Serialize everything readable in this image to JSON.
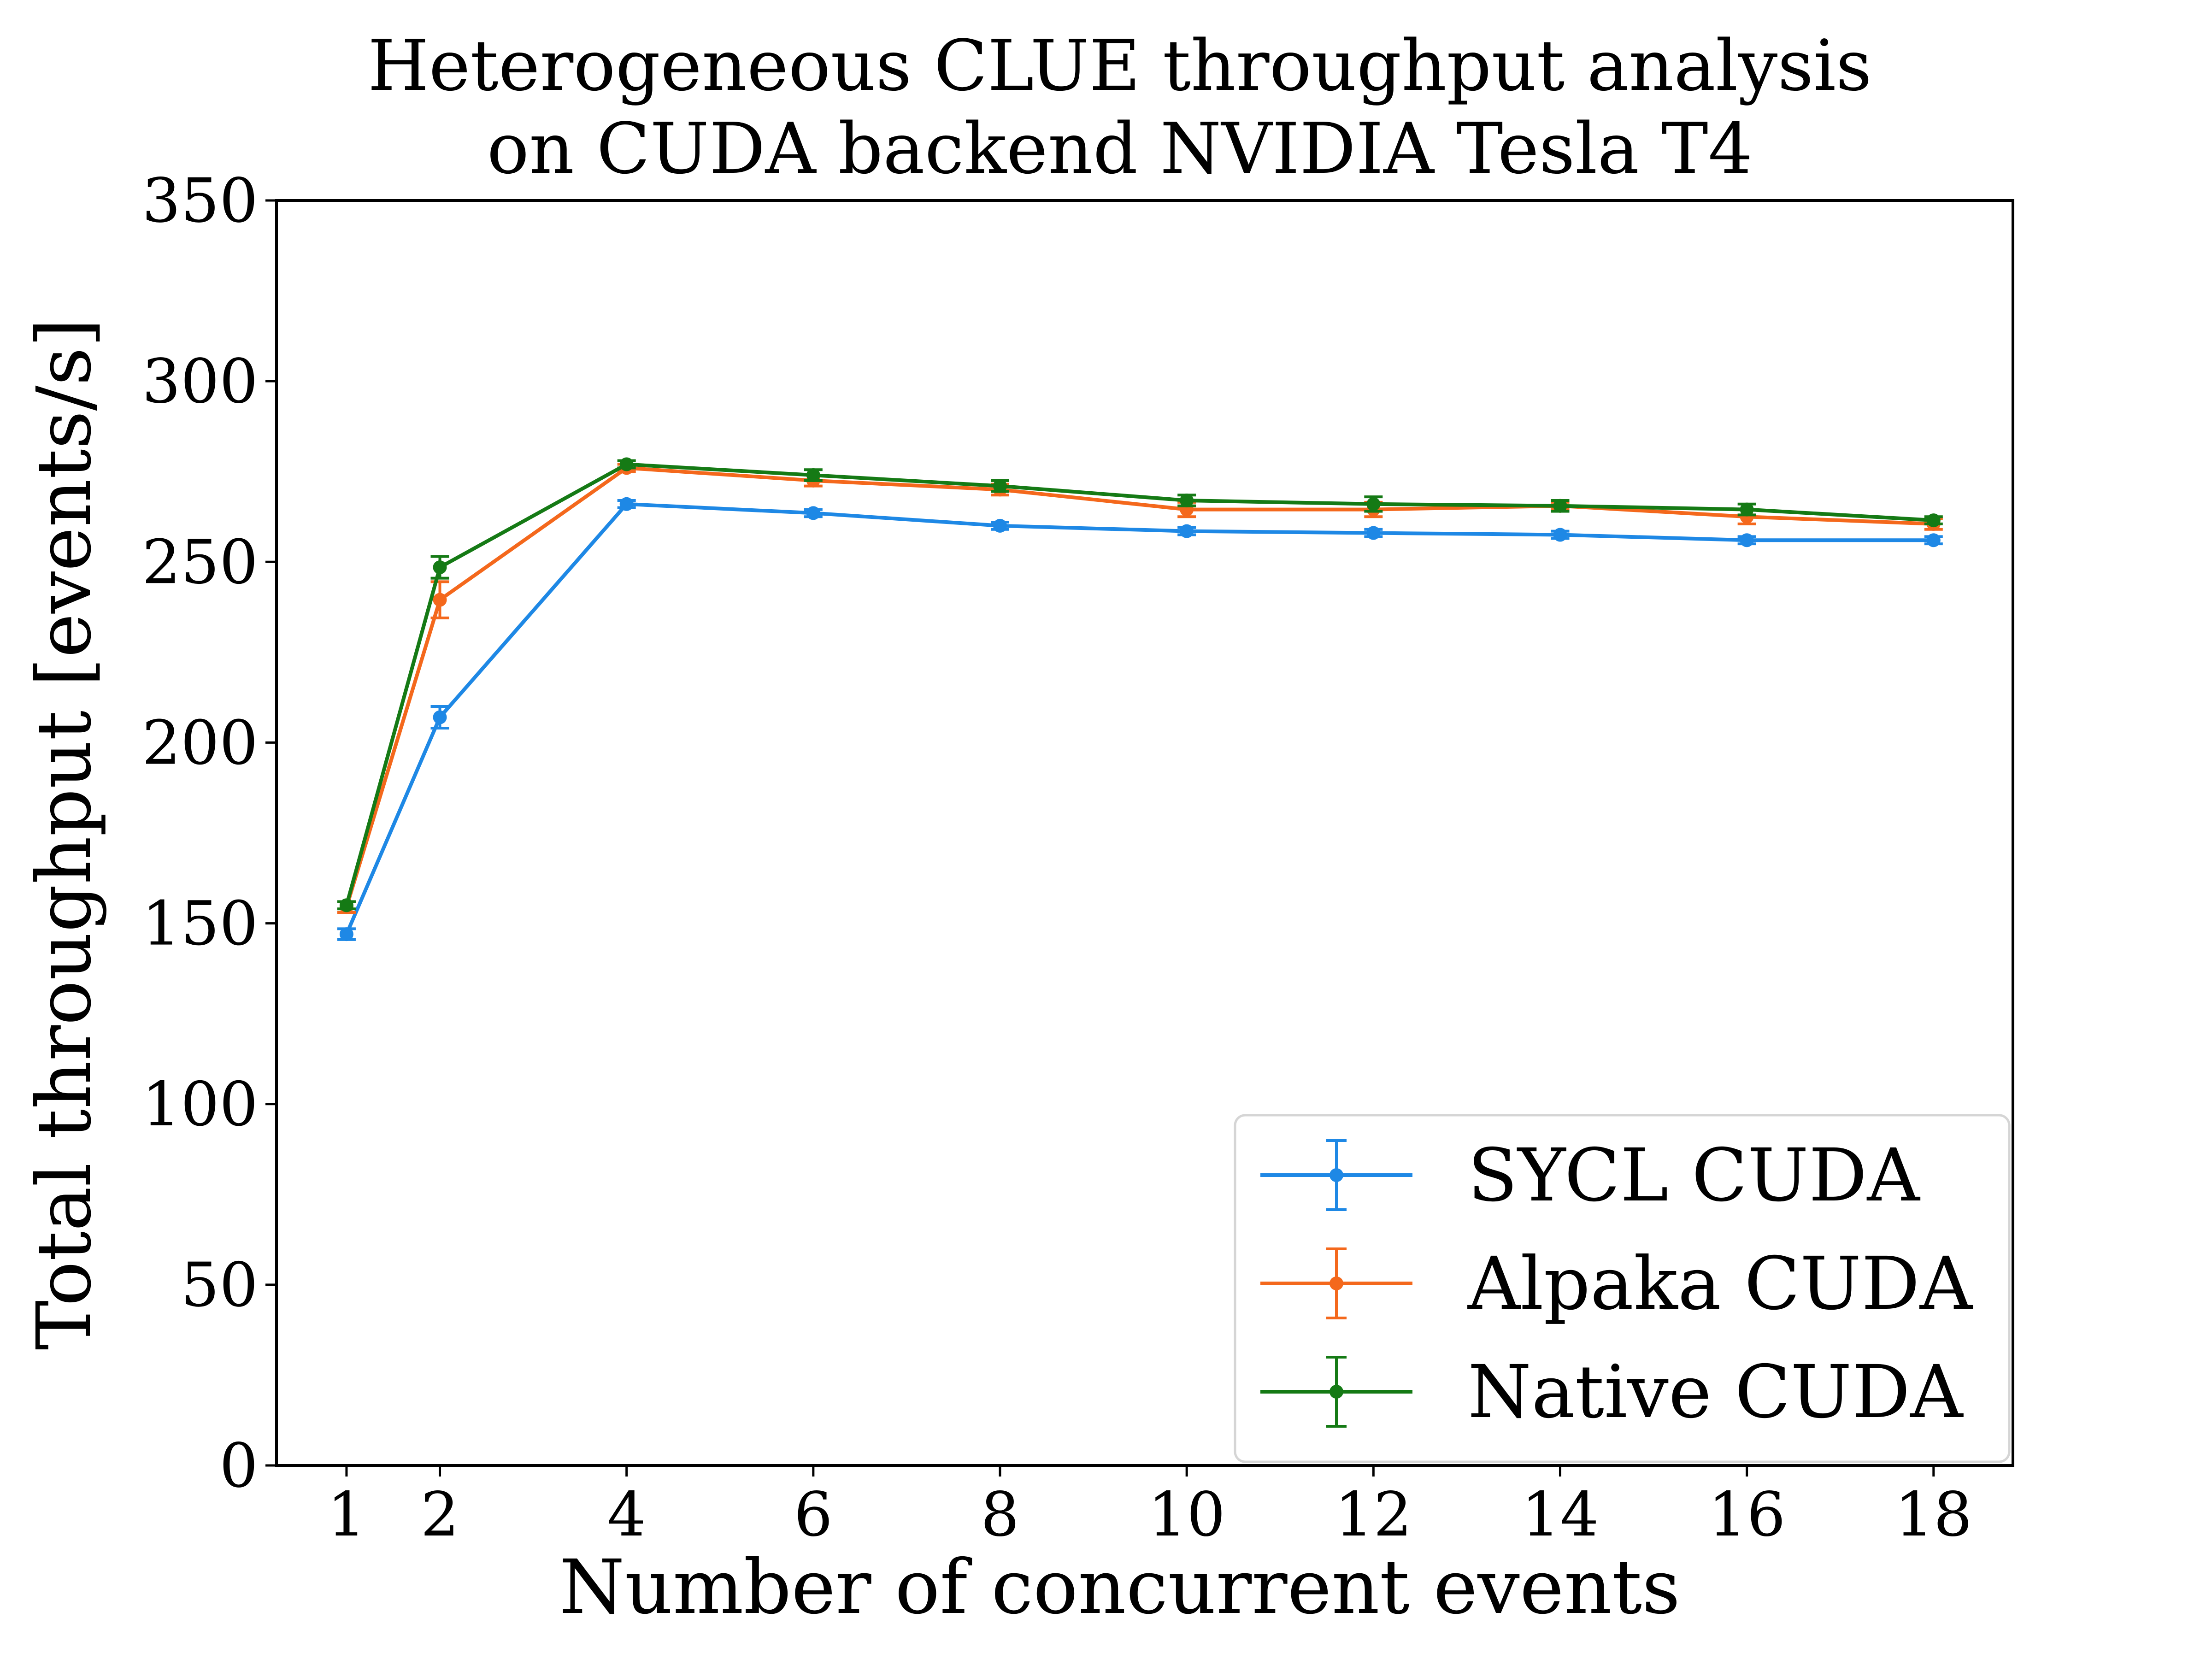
{
  "chart_data": {
    "type": "line",
    "title": [
      "Heterogeneous CLUE throughput analysis",
      "on CUDA backend NVIDIA Tesla T4"
    ],
    "xlabel": "Number of concurrent events",
    "ylabel": "Total throughput [events/s]",
    "x": [
      1,
      2,
      4,
      6,
      8,
      10,
      12,
      14,
      16,
      18
    ],
    "x_ticks": [
      1,
      2,
      4,
      6,
      8,
      10,
      12,
      14,
      16,
      18
    ],
    "y_ticks": [
      0,
      50,
      100,
      150,
      200,
      250,
      300,
      350
    ],
    "xlim": [
      0.25,
      18.85
    ],
    "ylim": [
      0,
      350
    ],
    "grid": false,
    "legend_position": "lower-right",
    "series": [
      {
        "name": "SYCL CUDA",
        "color": "#1e88e5",
        "values": [
          147,
          207,
          266,
          263.5,
          260,
          258.5,
          258,
          257.5,
          256,
          256
        ],
        "errors": [
          1.5,
          3,
          1,
          1,
          1,
          1,
          1,
          1,
          1,
          1
        ]
      },
      {
        "name": "Alpaka CUDA",
        "color": "#f4681c",
        "values": [
          154.5,
          239.5,
          276,
          272.5,
          270,
          264.5,
          264.5,
          265.5,
          262.5,
          260.5
        ],
        "errors": [
          1.5,
          5,
          1,
          1.5,
          1.5,
          2,
          2,
          1,
          2,
          1.5
        ]
      },
      {
        "name": "Native CUDA",
        "color": "#157a15",
        "values": [
          155,
          248.5,
          277,
          274,
          271,
          267,
          266,
          265.5,
          264.5,
          261.5
        ],
        "errors": [
          1,
          3,
          1,
          1.5,
          1.5,
          1.5,
          2,
          1.5,
          1.5,
          1
        ]
      }
    ]
  }
}
